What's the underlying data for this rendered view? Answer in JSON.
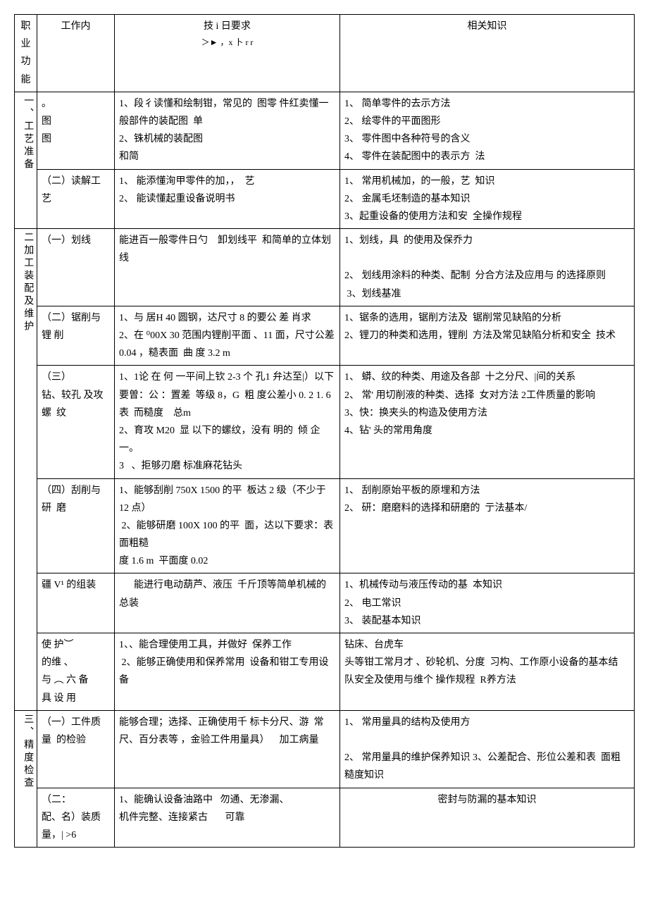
{
  "header": {
    "col1": "职业 功能",
    "col2": "工作内",
    "col3_line1": "技 i 日要求",
    "col3_line2": "＞► ，x 卜 r r",
    "col4": "相关知识"
  },
  "sections": [
    {
      "title": "一、工艺准备",
      "rows": [
        {
          "work": "。\n图\n图",
          "req": "1、段彳读懂和绘制钳，常见的  图零 件红卖懂一般部件的装配图  单\n2、铢机械的装配图\n和简",
          "know": "1、 简单零件的去示方法\n2、 绘零件的平面图形\n3、 零件图中各种符号的含义\n4、 零件在装配图中的表示方  法"
        },
        {
          "work": "（二）读解工艺",
          "req": "1、 能添懂洵甲零件的加，，  艺\n2、 能读懂起重设备说明书",
          "know": "1、 常用机械加，的一般，艺  知识\n2、 金属毛坯制造的基本知识\n3、起重设备的使用方法和安  全操作规程"
        }
      ]
    },
    {
      "title": "二加工装配及维护",
      "rows": [
        {
          "work": "（一）划线",
          "req": "能进百一般零件日勺    卸划线平  和简单的立体划线",
          "know": "1、划线，具  的使用及保乔力\n\n2、 划线用涂料的种类、配制  分合方法及应用与 的选择原则\n 3、划线基准"
        },
        {
          "work": "（二）锯削与锂 削",
          "req": "1、与 居H 40 圆钢，达尺寸 8 的要公 差 肖求\n2、在 ⁰00X 30 范围内锂削平面 、11 面，尺寸公差 0.04 ，糙表面  曲 度 3.2 m",
          "know": "1、锯条的选用，锯削方法及  锯削常见缺陷的分析\n2、锂刀的种类和选用，锂削  方法及常见缺陷分析和安全  技术"
        },
        {
          "work": "（三）\n钻、较孔 及攻螺  纹",
          "req": "1、1论 在 何 一平间上钦 2-3 个 孔1 弁达至|）以下要曽：公 ：置差  等级 8，G  粗 度公差小 0. 2 1. 6表  而糙度    总m\n2、育攻 M20  显 以下的螺纹，没有 明的  倾 企一。\n3   、拒够刃磨 标准麻花钻头",
          "know": "1、 蟒、纹的种类、用途及各部  十之分尺、|间的关系\n2、 常' 用切削液的种类、选择  女对方法 2工件质量的影响\n3、快：换夹头的构造及使用方法\n4、钻' 头的常用角度"
        },
        {
          "work": "（四）刮削与研  磨",
          "req": "1、能够刮削 750X 1500 的平  板达 2 级（不少于 12 点）\n 2、能够研磨 100X 100 的平  面，达以下要求：表面粗糙\n度 1.6 m  平面度 0.02",
          "know": "1、 刮削原始平板的原埋和方法\n2、 研：磨磨料的选择和研磨的  亍法基本/"
        },
        {
          "work": "疆 V¹ 的组装",
          "req": "      能进行电动葫芦、液压  千斤顶等简单机械的总装",
          "know": "1、机械传动与液压传动的基  本知识\n2、 电工常识\n3、 装配基本知识"
        },
        {
          "work": "使 护︶\n的维 、\n与 ︵ 六 备\n具 设 用",
          "req": "1、、能合理使用工具，并做好  保养工作\n 2、能够正确使用和保养常用  设备和钳工专用设备",
          "know": "钻床、台虎车\n头等钳工常月才 、砂轮机、分度  习构、工作原小设备的基本结  队安全及使用与维个 操作规程  R养方法"
        }
      ]
    },
    {
      "title": "三、精度检查",
      "rows": [
        {
          "work": "（一）工件质量  的检验",
          "req": "能够合理；选择、正确使用千 标卡分尺、游  常 尺、百分表等 ，金验工件用量具）    加工病量",
          "know": "1、 常用量具的结构及使用方\n\n2、 常用量具的维护保养知识 3、公差配合、形位公差和表  面粗糙度知识"
        },
        {
          "work": "（二：\n配、名）装质量，| >6",
          "req": "1、能确认设备油路中   勿通、无渗漏、\n机件完整、连接紧古       可靠",
          "know": "密封与防漏的基本知识"
        }
      ]
    }
  ]
}
